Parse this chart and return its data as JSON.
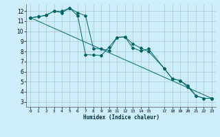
{
  "xlabel": "Humidex (Indice chaleur)",
  "bg_color": "#cceeff",
  "grid_color": "#aacccc",
  "line_color": "#006666",
  "xlim": [
    -0.5,
    23.5
  ],
  "ylim": [
    2.5,
    12.7
  ],
  "xticks": [
    0,
    1,
    2,
    3,
    4,
    5,
    6,
    7,
    8,
    9,
    10,
    11,
    12,
    13,
    14,
    15,
    17,
    18,
    19,
    20,
    21,
    22,
    23
  ],
  "xtick_labels": [
    "0",
    "1",
    "2",
    "3",
    "4",
    "5",
    "6",
    "7",
    "8",
    "9",
    "10",
    "11",
    "12",
    "13",
    "14",
    "15",
    "17",
    "18",
    "19",
    "20",
    "21",
    "22",
    "23"
  ],
  "yticks": [
    3,
    4,
    5,
    6,
    7,
    8,
    9,
    10,
    11,
    12
  ],
  "line1_x": [
    0,
    1,
    2,
    3,
    4,
    5,
    6,
    7,
    8,
    9,
    10,
    11,
    12,
    13,
    14,
    15,
    17,
    18,
    19,
    20,
    21,
    22,
    23
  ],
  "line1_y": [
    11.35,
    11.45,
    11.6,
    12.0,
    11.85,
    12.3,
    11.55,
    7.7,
    7.65,
    7.6,
    8.45,
    9.4,
    9.45,
    8.75,
    8.35,
    8.0,
    6.3,
    5.3,
    5.1,
    4.6,
    3.6,
    3.35,
    3.35
  ],
  "line2_x": [
    0,
    1,
    2,
    3,
    4,
    5,
    6,
    7,
    8,
    9,
    10,
    11,
    12,
    13,
    14,
    15,
    17,
    18,
    19,
    20,
    21,
    22,
    23
  ],
  "line2_y": [
    11.35,
    11.45,
    11.6,
    12.0,
    12.0,
    12.3,
    11.85,
    11.55,
    8.3,
    8.25,
    8.1,
    9.4,
    9.45,
    8.35,
    8.05,
    8.25,
    6.3,
    5.3,
    5.1,
    4.45,
    3.6,
    3.35,
    3.35
  ],
  "line3_x": [
    0,
    23
  ],
  "line3_y": [
    11.35,
    3.35
  ]
}
